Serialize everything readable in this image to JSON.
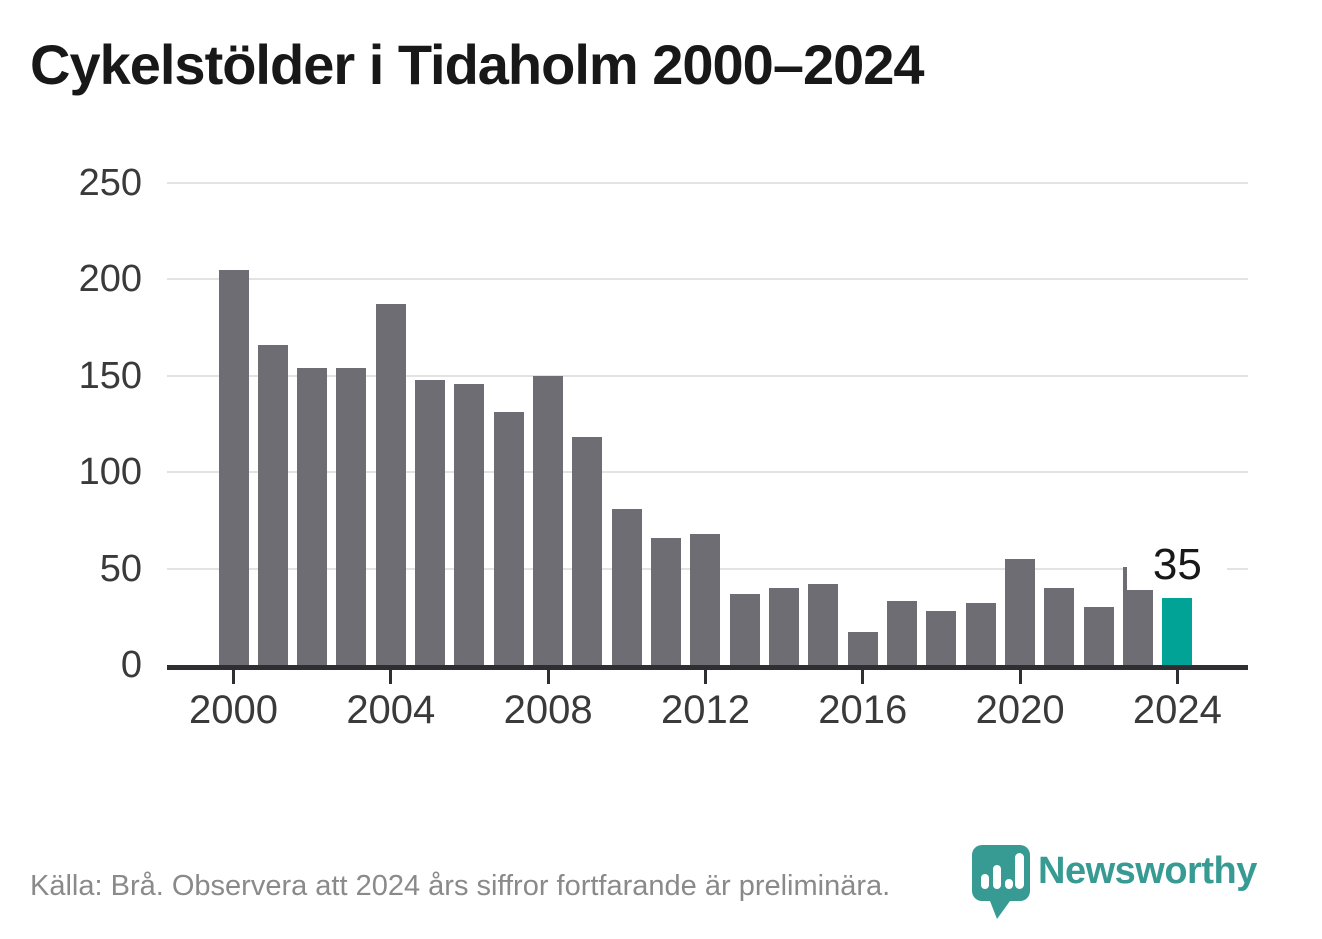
{
  "title": "Cykelstölder i Tidaholm 2000–2024",
  "footer": {
    "source_note": "Källa: Brå. Observera att 2024 års siffror fortfarande är preliminära."
  },
  "logo": {
    "wordmark": "Newsworthy",
    "icon": "newsworthy-pin-icon"
  },
  "colors": {
    "bar": "#6f6d74",
    "highlight": "#00a396",
    "axis": "#2f2e32",
    "grid": "#e3e3e3",
    "tick_text": "#3a3a3a",
    "title_text": "#181818",
    "footer_text": "#8a8a8a",
    "logo_teal": "#379b94",
    "value_label_text": "#181818"
  },
  "chart_data": {
    "type": "bar",
    "title": "Cykelstölder i Tidaholm 2000–2024",
    "xlabel": "",
    "ylabel": "",
    "x": [
      2000,
      2001,
      2002,
      2003,
      2004,
      2005,
      2006,
      2007,
      2008,
      2009,
      2010,
      2011,
      2012,
      2013,
      2014,
      2015,
      2016,
      2017,
      2018,
      2019,
      2020,
      2021,
      2022,
      2023,
      2024
    ],
    "values": [
      205,
      166,
      154,
      154,
      187,
      148,
      146,
      131,
      150,
      118,
      81,
      66,
      68,
      37,
      40,
      42,
      17,
      33,
      28,
      32,
      55,
      40,
      30,
      51,
      35
    ],
    "highlight_index": 24,
    "data_labels": [
      {
        "index": 24,
        "text": "35"
      }
    ],
    "xticks": [
      2000,
      2004,
      2008,
      2012,
      2016,
      2020,
      2024
    ],
    "yticks": [
      0,
      50,
      100,
      150,
      200,
      250
    ],
    "ylim": [
      0,
      250
    ],
    "grid": "horizontal",
    "legend": "none"
  }
}
